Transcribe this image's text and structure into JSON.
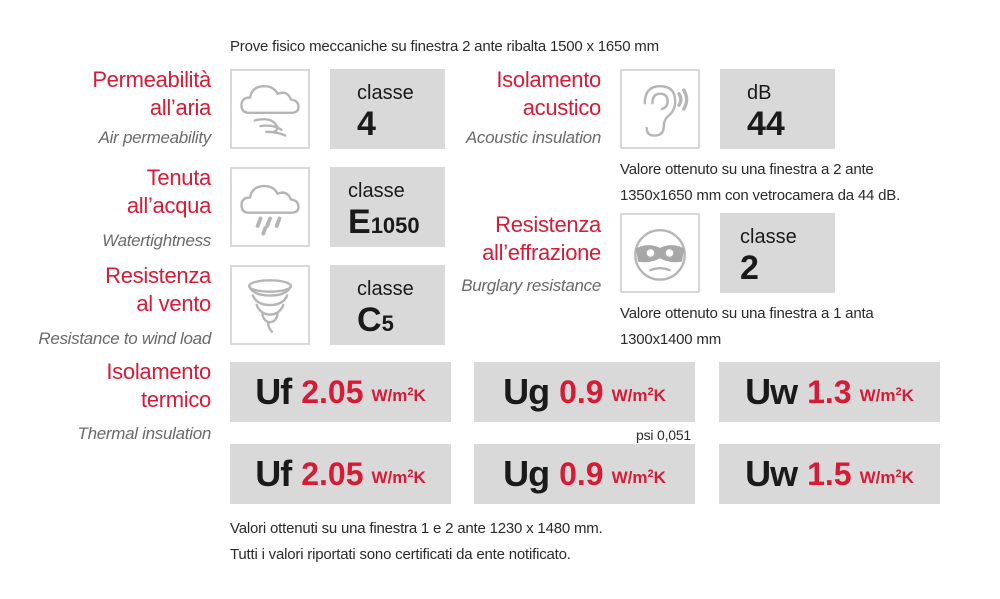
{
  "header": {
    "subtitle": "Prove fisico meccaniche su finestra 2 ante ribalta 1500 x 1650 mm"
  },
  "permeability": {
    "title1": "Permeabilità",
    "title2": "all’aria",
    "english": "Air permeability",
    "icon": "wind-cloud-icon",
    "label": "classe",
    "value": "4"
  },
  "watertightness": {
    "title1": "Tenuta",
    "title2": "all’acqua",
    "english": "Watertightness",
    "icon": "rain-cloud-icon",
    "label": "classe",
    "value_main": "E",
    "value_sub": "1050"
  },
  "wind_resistance": {
    "title1": "Resistenza",
    "title2": "al vento",
    "english": "Resistance to wind load",
    "icon": "tornado-icon",
    "label": "classe",
    "value_main": "C",
    "value_sub": "5"
  },
  "acoustic": {
    "title1": "Isolamento",
    "title2": "acustico",
    "english": "Acoustic insulation",
    "icon": "ear-icon",
    "label": "dB",
    "value": "44",
    "note1": "Valore ottenuto su una finestra a 2 ante",
    "note2": "1350x1650 mm con vetrocamera da 44 dB."
  },
  "burglary": {
    "title1": "Resistenza",
    "title2": "all’effrazione",
    "english": "Burglary resistance",
    "icon": "burglar-mask-icon",
    "label": "classe",
    "value": "2",
    "note1": "Valore ottenuto su una finestra a 1 anta",
    "note2": "1300x1400 mm"
  },
  "thermal": {
    "title1": "Isolamento",
    "title2": "termico",
    "english": "Thermal insulation",
    "unit_base": "W/m",
    "unit_exp": "2",
    "unit_tail": "K",
    "psi_note": "psi 0,051",
    "row1": [
      {
        "symbol": "Uf",
        "value": "2.05"
      },
      {
        "symbol": "Ug",
        "value": "0.9"
      },
      {
        "symbol": "Uw",
        "value": "1.3"
      }
    ],
    "row2": [
      {
        "symbol": "Uf",
        "value": "2.05"
      },
      {
        "symbol": "Ug",
        "value": "0.9"
      },
      {
        "symbol": "Uw",
        "value": "1.5"
      }
    ]
  },
  "footer": {
    "line1": "Valori ottenuti su una finestra 1 e 2 ante 1230 x 1480 mm.",
    "line2": "Tutti i valori riportati sono certificati da ente notificato."
  }
}
